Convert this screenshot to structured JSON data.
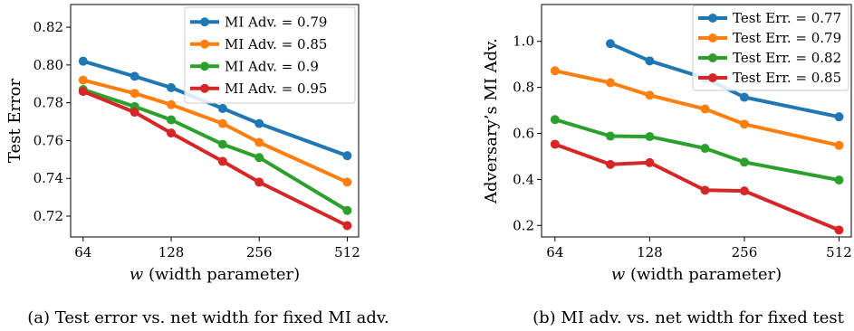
{
  "chart_data": [
    {
      "type": "line",
      "caption": "(a) Test error vs. net width for fixed MI adv.",
      "xlabel_var": "w",
      "xlabel_rest": " (width parameter)",
      "ylabel": "Test Error",
      "x_scale": "log2",
      "xlim": [
        58,
        560
      ],
      "ylim": [
        0.709,
        0.832
      ],
      "x_ticks": [
        64,
        128,
        256,
        512
      ],
      "x_tick_labels": [
        "64",
        "128",
        "256",
        "512"
      ],
      "y_ticks": [
        0.72,
        0.74,
        0.76,
        0.78,
        0.8,
        0.82
      ],
      "y_tick_labels": [
        "0.72",
        "0.74",
        "0.76",
        "0.78",
        "0.80",
        "0.82"
      ],
      "grid": false,
      "legend_position": "top-right",
      "series": [
        {
          "name": "MI Adv. = 0.79",
          "color": "#1f77b4",
          "x": [
            64,
            96,
            128,
            192,
            256,
            512
          ],
          "y": [
            0.802,
            0.794,
            0.788,
            0.777,
            0.769,
            0.752
          ]
        },
        {
          "name": "MI Adv. = 0.85",
          "color": "#ff7f0e",
          "x": [
            64,
            96,
            128,
            192,
            256,
            512
          ],
          "y": [
            0.792,
            0.785,
            0.779,
            0.769,
            0.759,
            0.738
          ]
        },
        {
          "name": "MI Adv. = 0.9",
          "color": "#2ca02c",
          "x": [
            64,
            96,
            128,
            192,
            256,
            512
          ],
          "y": [
            0.787,
            0.778,
            0.771,
            0.758,
            0.751,
            0.723
          ]
        },
        {
          "name": "MI Adv. = 0.95",
          "color": "#d62728",
          "x": [
            64,
            96,
            128,
            192,
            256,
            512
          ],
          "y": [
            0.786,
            0.775,
            0.764,
            0.749,
            0.738,
            0.715
          ]
        }
      ]
    },
    {
      "type": "line",
      "caption": "(b) MI adv. vs. net width for fixed test",
      "xlabel_var": "w",
      "xlabel_rest": " (width parameter)",
      "ylabel": "Adversary’s MI Adv.",
      "x_scale": "log2",
      "xlim": [
        58,
        560
      ],
      "ylim": [
        0.15,
        1.16
      ],
      "x_ticks": [
        64,
        128,
        256,
        512
      ],
      "x_tick_labels": [
        "64",
        "128",
        "256",
        "512"
      ],
      "y_ticks": [
        0.2,
        0.4,
        0.6,
        0.8,
        1.0
      ],
      "y_tick_labels": [
        "0.2",
        "0.4",
        "0.6",
        "0.8",
        "1.0"
      ],
      "grid": false,
      "legend_position": "top-right",
      "series": [
        {
          "name": "Test Err. = 0.77",
          "color": "#1f77b4",
          "x": [
            96,
            128,
            192,
            256,
            512
          ],
          "y": [
            0.99,
            0.915,
            0.84,
            0.757,
            0.672
          ]
        },
        {
          "name": "Test Err. = 0.79",
          "color": "#ff7f0e",
          "x": [
            64,
            96,
            128,
            192,
            256,
            512
          ],
          "y": [
            0.872,
            0.82,
            0.766,
            0.706,
            0.64,
            0.548
          ]
        },
        {
          "name": "Test Err. = 0.82",
          "color": "#2ca02c",
          "x": [
            64,
            96,
            128,
            192,
            256,
            512
          ],
          "y": [
            0.66,
            0.588,
            0.586,
            0.535,
            0.475,
            0.397
          ]
        },
        {
          "name": "Test Err. = 0.85",
          "color": "#d62728",
          "x": [
            64,
            96,
            128,
            192,
            256,
            512
          ],
          "y": [
            0.553,
            0.465,
            0.473,
            0.353,
            0.35,
            0.18
          ]
        }
      ]
    }
  ]
}
